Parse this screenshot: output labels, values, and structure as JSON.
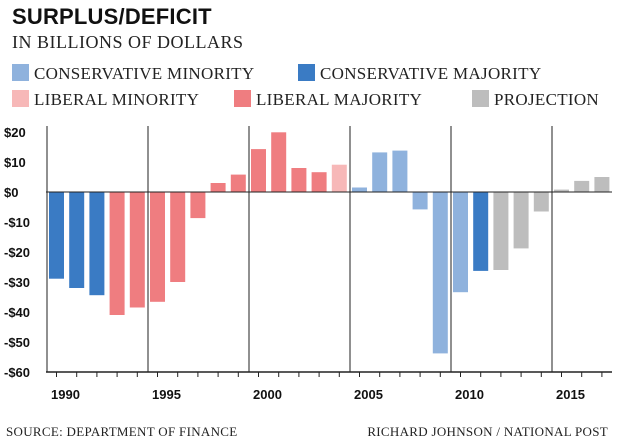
{
  "title": "SURPLUS/DEFICIT",
  "subtitle": "IN BILLIONS OF DOLLARS",
  "source": "SOURCE: DEPARTMENT OF FINANCE",
  "credit": "RICHARD JOHNSON / NATIONAL POST",
  "chart_data": {
    "type": "bar",
    "title": "SURPLUS/DEFICIT",
    "ylabel": "IN BILLIONS OF DOLLARS",
    "ylim": [
      -60,
      20
    ],
    "yticks": [
      20,
      10,
      0,
      -10,
      -20,
      -30,
      -40,
      -50,
      -60
    ],
    "ytick_labels": [
      "$20",
      "$10",
      "$0",
      "-$10",
      "-$20",
      "-$30",
      "-$40",
      "-$50",
      "-$60"
    ],
    "xticks": [
      1990,
      1995,
      2000,
      2005,
      2010,
      2015
    ],
    "grid": "vertical lines at each tick year",
    "legend": [
      {
        "key": "cons_min",
        "label": "CONSERVATIVE MINORITY",
        "color": "#8fb2dd"
      },
      {
        "key": "cons_maj",
        "label": "CONSERVATIVE MAJORITY",
        "color": "#3a7bc4"
      },
      {
        "key": "lib_min",
        "label": "LIBERAL MINORITY",
        "color": "#f7b8b8"
      },
      {
        "key": "lib_maj",
        "label": "LIBERAL MAJORITY",
        "color": "#ef7d80"
      },
      {
        "key": "proj",
        "label": "PROJECTION",
        "color": "#bdbdbd"
      }
    ],
    "data": [
      {
        "year": 1990,
        "value": -28.9,
        "group": "cons_maj"
      },
      {
        "year": 1991,
        "value": -32.0,
        "group": "cons_maj"
      },
      {
        "year": 1992,
        "value": -34.4,
        "group": "cons_maj"
      },
      {
        "year": 1993,
        "value": -41.0,
        "group": "lib_maj"
      },
      {
        "year": 1994,
        "value": -38.5,
        "group": "lib_maj"
      },
      {
        "year": 1995,
        "value": -36.6,
        "group": "lib_maj"
      },
      {
        "year": 1996,
        "value": -30.0,
        "group": "lib_maj"
      },
      {
        "year": 1997,
        "value": -8.7,
        "group": "lib_maj"
      },
      {
        "year": 1998,
        "value": 3.0,
        "group": "lib_maj"
      },
      {
        "year": 1999,
        "value": 5.8,
        "group": "lib_maj"
      },
      {
        "year": 2000,
        "value": 14.3,
        "group": "lib_maj"
      },
      {
        "year": 2001,
        "value": 19.9,
        "group": "lib_maj"
      },
      {
        "year": 2002,
        "value": 8.0,
        "group": "lib_maj"
      },
      {
        "year": 2003,
        "value": 6.6,
        "group": "lib_maj"
      },
      {
        "year": 2004,
        "value": 9.1,
        "group": "lib_min"
      },
      {
        "year": 2005,
        "value": 1.5,
        "group": "cons_min"
      },
      {
        "year": 2006,
        "value": 13.2,
        "group": "cons_min"
      },
      {
        "year": 2007,
        "value": 13.8,
        "group": "cons_min"
      },
      {
        "year": 2008,
        "value": -5.8,
        "group": "cons_min"
      },
      {
        "year": 2009,
        "value": -53.8,
        "group": "cons_min"
      },
      {
        "year": 2010,
        "value": -33.4,
        "group": "cons_min"
      },
      {
        "year": 2011,
        "value": -26.3,
        "group": "cons_maj"
      },
      {
        "year": 2012,
        "value": -26.0,
        "group": "proj"
      },
      {
        "year": 2013,
        "value": -18.8,
        "group": "proj"
      },
      {
        "year": 2014,
        "value": -6.5,
        "group": "proj"
      },
      {
        "year": 2015,
        "value": 0.8,
        "group": "proj"
      },
      {
        "year": 2016,
        "value": 3.7,
        "group": "proj"
      },
      {
        "year": 2017,
        "value": 5.0,
        "group": "proj"
      }
    ]
  }
}
